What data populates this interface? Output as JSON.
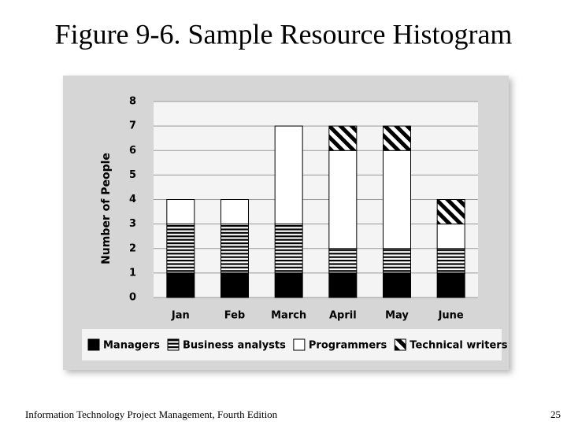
{
  "slide": {
    "footer": "Information Technology Project Management, Fourth Edition",
    "page_number": 25
  },
  "chart_data": {
    "type": "stacked-bar",
    "title": "Figure 9-6. Sample Resource Histogram",
    "ylabel": "Number of People",
    "categories": [
      "Jan",
      "Feb",
      "March",
      "April",
      "May",
      "June"
    ],
    "series": [
      {
        "name": "Managers",
        "color": "#000000",
        "pattern": "solid",
        "values": [
          1,
          1,
          1,
          1,
          1,
          1
        ]
      },
      {
        "name": "Business analysts",
        "color": "#000000",
        "pattern": "horizontal-stripes",
        "values": [
          2,
          2,
          2,
          1,
          1,
          1
        ]
      },
      {
        "name": "Programmers",
        "color": "#ffffff",
        "pattern": "solid",
        "values": [
          1,
          1,
          4,
          4,
          4,
          1
        ]
      },
      {
        "name": "Technical writers",
        "color": "#000000",
        "pattern": "diagonal-stripes",
        "values": [
          0,
          0,
          0,
          1,
          1,
          1
        ]
      }
    ],
    "ylim": [
      0,
      8
    ],
    "yticks": [
      0,
      1,
      2,
      3,
      4,
      5,
      6,
      7,
      8
    ],
    "grid": true,
    "legend": "bottom"
  }
}
